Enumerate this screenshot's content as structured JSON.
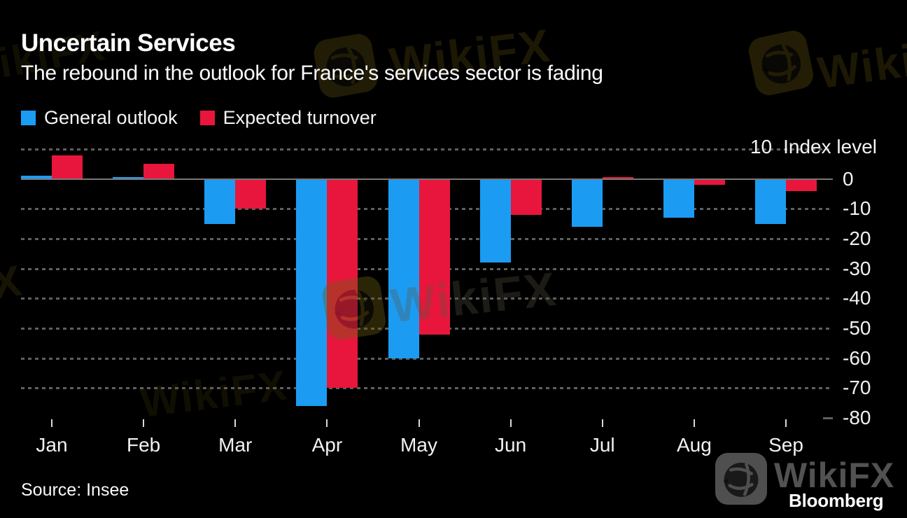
{
  "header": {
    "title": "Uncertain Services",
    "subtitle": "The rebound in the outlook for France's services sector is fading"
  },
  "legend": {
    "items": [
      {
        "label": "General outlook",
        "color": "#1b9cf2"
      },
      {
        "label": "Expected turnover",
        "color": "#e8163c"
      }
    ]
  },
  "chart_data": {
    "type": "bar",
    "categories": [
      "Jan",
      "Feb",
      "Mar",
      "Apr",
      "May",
      "Jun",
      "Jul",
      "Aug",
      "Sep"
    ],
    "series": [
      {
        "name": "General outlook",
        "color": "#1b9cf2",
        "values": [
          1,
          0.7,
          -15,
          -76,
          -60,
          -28,
          -16,
          -13,
          -15
        ]
      },
      {
        "name": "Expected turnover",
        "color": "#e8163c",
        "values": [
          8,
          5,
          -10,
          -70,
          -52,
          -12,
          0.7,
          -2,
          -4
        ]
      }
    ],
    "title": "Uncertain Services",
    "xlabel": "",
    "ylabel": "Index level",
    "ylim": [
      -80,
      10
    ],
    "yticks": [
      10,
      0,
      -10,
      -20,
      -30,
      -40,
      -50,
      -60,
      -70,
      -80
    ],
    "grid": "horizontal-dotted",
    "legend_position": "top-left",
    "baseline": 0
  },
  "axis": {
    "unit_tick": "10",
    "unit_label": "Index level"
  },
  "footer": {
    "source": "Source: Insee",
    "brand": "Bloomberg"
  },
  "watermark": {
    "text": "WikiFX"
  },
  "colors": {
    "background": "#000000",
    "grid_dotted": "#5f5f5f",
    "zero_line": "#787878",
    "title_text": "#ffffff",
    "axis_text": "#f1f1f1",
    "watermark_gray": "#525252",
    "watermark_ghost": "#6d5c12"
  }
}
